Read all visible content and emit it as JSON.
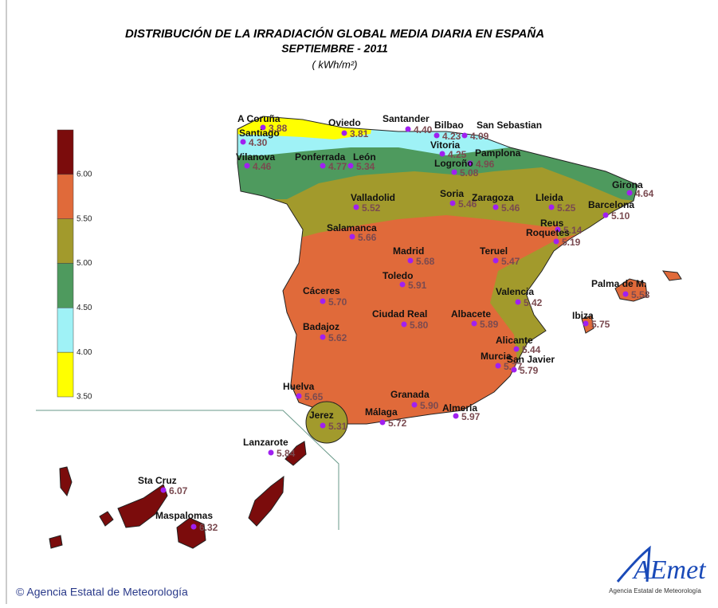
{
  "header": {
    "title": "DISTRIBUCIÓN DE LA IRRADIACIÓN GLOBAL MEDIA DIARIA EN  ESPAÑA",
    "subtitle": "SEPTIEMBRE - 2011",
    "unit": "( kWh/m²)"
  },
  "legend": {
    "colors": [
      "#7b0c0c",
      "#e06a3a",
      "#a29a2c",
      "#4e9a5e",
      "#9ff2f6",
      "#ffff00"
    ],
    "ticks": [
      {
        "value": 6.0,
        "label": "6.00"
      },
      {
        "value": 5.5,
        "label": "5.50"
      },
      {
        "value": 5.0,
        "label": "5.00"
      },
      {
        "value": 4.5,
        "label": "4.50"
      },
      {
        "value": 4.0,
        "label": "4.00"
      },
      {
        "value": 3.5,
        "label": "3.50"
      }
    ]
  },
  "stations": [
    {
      "name": "A Coruña",
      "value": "3.88"
    },
    {
      "name": "Santiago",
      "value": "4.30"
    },
    {
      "name": "Oviedo",
      "value": "3.81"
    },
    {
      "name": "Santander",
      "value": "4.40"
    },
    {
      "name": "Bilbao",
      "value": "4.23"
    },
    {
      "name": "San Sebastian",
      "value": "4.09"
    },
    {
      "name": "Vitoria",
      "value": "4.25"
    },
    {
      "name": "Pamplona",
      "value": "4.96"
    },
    {
      "name": "Logroño",
      "value": "5.08"
    },
    {
      "name": "Vilanova",
      "value": "4.46"
    },
    {
      "name": "Ponferrada",
      "value": "4.77"
    },
    {
      "name": "León",
      "value": "5.34"
    },
    {
      "name": "Valladolid",
      "value": "5.52"
    },
    {
      "name": "Soria",
      "value": "5.46"
    },
    {
      "name": "Zaragoza",
      "value": "5.46"
    },
    {
      "name": "Lleida",
      "value": "5.25"
    },
    {
      "name": "Girona",
      "value": "4.64"
    },
    {
      "name": "Barcelona",
      "value": "5.10"
    },
    {
      "name": "Reus",
      "value": "5.14"
    },
    {
      "name": "Roquetes",
      "value": "5.19"
    },
    {
      "name": "Salamanca",
      "value": "5.66"
    },
    {
      "name": "Madrid",
      "value": "5.68"
    },
    {
      "name": "Teruel",
      "value": "5.47"
    },
    {
      "name": "Toledo",
      "value": "5.91"
    },
    {
      "name": "Cáceres",
      "value": "5.70"
    },
    {
      "name": "Valencia",
      "value": "5.42"
    },
    {
      "name": "Palma de M.",
      "value": "5.58"
    },
    {
      "name": "Ciudad Real",
      "value": "5.80"
    },
    {
      "name": "Albacete",
      "value": "5.89"
    },
    {
      "name": "Ibiza",
      "value": "5.75"
    },
    {
      "name": "Badajoz",
      "value": "5.62"
    },
    {
      "name": "Alicante",
      "value": "5.44"
    },
    {
      "name": "Murcia",
      "value": "5.77"
    },
    {
      "name": "San Javier",
      "value": "5.79"
    },
    {
      "name": "Huelva",
      "value": "5.65"
    },
    {
      "name": "Granada",
      "value": "5.90"
    },
    {
      "name": "Almeria",
      "value": "5.97"
    },
    {
      "name": "Jerez",
      "value": "5.31"
    },
    {
      "name": "Málaga",
      "value": "5.72"
    },
    {
      "name": "Lanzarote",
      "value": "5.84"
    },
    {
      "name": "Sta Cruz",
      "value": "6.07"
    },
    {
      "name": "Maspalomas",
      "value": "6.32"
    }
  ],
  "footer": {
    "copyright": "© Agencia Estatal de Meteorología",
    "logo": "AEmet",
    "logo_caption": "Agencia Estatal de Meteorología"
  }
}
